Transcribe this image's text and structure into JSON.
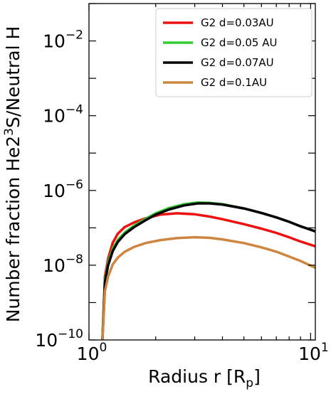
{
  "chart_data": {
    "type": "line",
    "xlabel": "Radius r [R",
    "xlabel_sub": "p",
    "xlabel_tail": "]",
    "ylabel": "Number fraction He2",
    "ylabel_sup": "3",
    "ylabel_tail": "S/Neutral H",
    "x_scale": "log",
    "y_scale": "log",
    "xlim": [
      1.0,
      10.5
    ],
    "ylim": [
      1e-10,
      0.1
    ],
    "x_ticks": [
      {
        "value": 1,
        "base": "10",
        "exp": "0"
      },
      {
        "value": 10,
        "base": "10",
        "exp": "1"
      }
    ],
    "y_ticks": [
      {
        "value": 1e-10,
        "base": "10",
        "exp": "−10"
      },
      {
        "value": 1e-08,
        "base": "10",
        "exp": "−8"
      },
      {
        "value": 1e-06,
        "base": "10",
        "exp": "−6"
      },
      {
        "value": 0.0001,
        "base": "10",
        "exp": "−4"
      },
      {
        "value": 0.01,
        "base": "10",
        "exp": "−2"
      }
    ],
    "grid": false,
    "legend_position": "top-right",
    "series": [
      {
        "name": "G2 d=0.03AU",
        "color": "#ee1111",
        "points": [
          [
            1.15,
            1e-10
          ],
          [
            1.18,
            5e-09
          ],
          [
            1.22,
            1.5e-08
          ],
          [
            1.28,
            4e-08
          ],
          [
            1.35,
            7e-08
          ],
          [
            1.45,
            1.05e-07
          ],
          [
            1.6,
            1.4e-07
          ],
          [
            1.8,
            1.8e-07
          ],
          [
            2.1,
            2.25e-07
          ],
          [
            2.5,
            2.45e-07
          ],
          [
            3.0,
            2.3e-07
          ],
          [
            3.5,
            2e-07
          ],
          [
            4.0,
            1.7e-07
          ],
          [
            5.0,
            1.25e-07
          ],
          [
            6.0,
            9.5e-08
          ],
          [
            7.0,
            7.3e-08
          ],
          [
            8.0,
            5.6e-08
          ],
          [
            9.0,
            4.3e-08
          ],
          [
            10.5,
            3.2e-08
          ]
        ]
      },
      {
        "name": "G2 d=0.05 AU",
        "color": "#33cc33",
        "points": [
          [
            1.15,
            1e-10
          ],
          [
            1.18,
            4e-09
          ],
          [
            1.22,
            1.2e-08
          ],
          [
            1.28,
            2.8e-08
          ],
          [
            1.35,
            4.8e-08
          ],
          [
            1.45,
            7.5e-08
          ],
          [
            1.6,
            1.15e-07
          ],
          [
            1.8,
            1.75e-07
          ],
          [
            2.0,
            2.45e-07
          ],
          [
            2.3,
            3.4e-07
          ],
          [
            2.7,
            4.3e-07
          ],
          [
            3.1,
            4.75e-07
          ],
          [
            3.5,
            4.65e-07
          ],
          [
            4.0,
            4.3e-07
          ],
          [
            5.0,
            3.3e-07
          ],
          [
            6.0,
            2.5e-07
          ],
          [
            7.0,
            1.9e-07
          ],
          [
            8.0,
            1.45e-07
          ],
          [
            9.0,
            1.1e-07
          ],
          [
            10.5,
            8e-08
          ]
        ]
      },
      {
        "name": "G2 d=0.07AU",
        "color": "#000000",
        "points": [
          [
            1.15,
            1e-10
          ],
          [
            1.18,
            3.5e-09
          ],
          [
            1.22,
            1e-08
          ],
          [
            1.28,
            2.4e-08
          ],
          [
            1.35,
            4.2e-08
          ],
          [
            1.45,
            6.8e-08
          ],
          [
            1.6,
            1.05e-07
          ],
          [
            1.8,
            1.6e-07
          ],
          [
            2.0,
            2.25e-07
          ],
          [
            2.3,
            3.1e-07
          ],
          [
            2.7,
            4e-07
          ],
          [
            3.1,
            4.5e-07
          ],
          [
            3.5,
            4.5e-07
          ],
          [
            4.0,
            4.2e-07
          ],
          [
            5.0,
            3.3e-07
          ],
          [
            6.0,
            2.5e-07
          ],
          [
            7.0,
            1.9e-07
          ],
          [
            8.0,
            1.45e-07
          ],
          [
            9.0,
            1.1e-07
          ],
          [
            10.5,
            8e-08
          ]
        ]
      },
      {
        "name": "G2 d=0.1AU",
        "color": "#cd853f",
        "points": [
          [
            1.15,
            1e-10
          ],
          [
            1.18,
            2e-09
          ],
          [
            1.22,
            5e-09
          ],
          [
            1.28,
            1.05e-08
          ],
          [
            1.35,
            1.6e-08
          ],
          [
            1.45,
            2.3e-08
          ],
          [
            1.6,
            3.1e-08
          ],
          [
            1.8,
            3.9e-08
          ],
          [
            2.1,
            4.7e-08
          ],
          [
            2.5,
            5.3e-08
          ],
          [
            3.0,
            5.6e-08
          ],
          [
            3.5,
            5.4e-08
          ],
          [
            4.0,
            4.9e-08
          ],
          [
            5.0,
            3.9e-08
          ],
          [
            6.0,
            3e-08
          ],
          [
            7.0,
            2.3e-08
          ],
          [
            8.0,
            1.7e-08
          ],
          [
            9.0,
            1.3e-08
          ],
          [
            10.5,
            8.5e-09
          ]
        ]
      }
    ]
  }
}
